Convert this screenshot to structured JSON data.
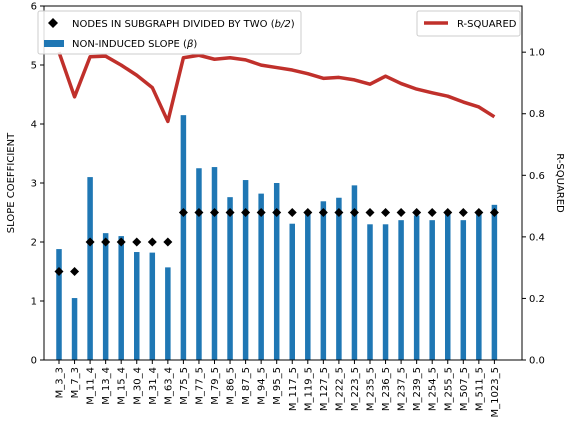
{
  "chart_data": {
    "type": "bar",
    "categories": [
      "M_3_3",
      "M_7_3",
      "M_11_4",
      "M_13_4",
      "M_15_4",
      "M_30_4",
      "M_31_4",
      "M_63_4",
      "M_75_5",
      "M_77_5",
      "M_79_5",
      "M_86_5",
      "M_87_5",
      "M_94_5",
      "M_95_5",
      "M_117_5",
      "M_119_5",
      "M_127_5",
      "M_222_5",
      "M_223_5",
      "M_235_5",
      "M_236_5",
      "M_237_5",
      "M_239_5",
      "M_254_5",
      "M_255_5",
      "M_507_5",
      "M_511_5",
      "M_1023_5"
    ],
    "ylabel_left": "SLOPE COEFFICIENT",
    "ylabel_right": "R-SQUARED",
    "ylim_left": [
      0,
      6
    ],
    "ylim_right": [
      0,
      1.15
    ],
    "yticks_left": [
      "0",
      "1",
      "2",
      "3",
      "4",
      "5",
      "6"
    ],
    "yticks_right": [
      "0.0",
      "0.2",
      "0.4",
      "0.6",
      "0.8",
      "1.0"
    ],
    "grid": false,
    "legend_left_placement": "top-left",
    "legend_right_placement": "top-right",
    "series": [
      {
        "name": "NON-INDUCED SLOPE (β)",
        "kind": "bar",
        "axis": "left",
        "color": "#1f77b4",
        "values": [
          1.88,
          1.05,
          3.1,
          2.15,
          2.1,
          1.83,
          1.82,
          1.57,
          4.15,
          3.25,
          3.27,
          2.76,
          3.05,
          2.82,
          3.0,
          2.31,
          2.47,
          2.69,
          2.75,
          2.96,
          2.3,
          2.3,
          2.37,
          2.45,
          2.37,
          2.48,
          2.37,
          2.47,
          2.63
        ]
      },
      {
        "name": "NODES IN SUBGRAPH DIVIDED BY TWO (b/2)",
        "kind": "marker",
        "axis": "left",
        "color": "#000000",
        "values": [
          1.5,
          1.5,
          2.0,
          2.0,
          2.0,
          2.0,
          2.0,
          2.0,
          2.5,
          2.5,
          2.5,
          2.5,
          2.5,
          2.5,
          2.5,
          2.5,
          2.5,
          2.5,
          2.5,
          2.5,
          2.5,
          2.5,
          2.5,
          2.5,
          2.5,
          2.5,
          2.5,
          2.5,
          2.5
        ]
      },
      {
        "name": "R-SQUARED",
        "kind": "line",
        "axis": "right",
        "color": "#c0302b",
        "values": [
          1.0,
          0.855,
          0.985,
          0.987,
          0.958,
          0.925,
          0.885,
          0.775,
          0.982,
          0.99,
          0.977,
          0.982,
          0.975,
          0.958,
          0.95,
          0.942,
          0.93,
          0.915,
          0.918,
          0.91,
          0.896,
          0.922,
          0.898,
          0.88,
          0.868,
          0.857,
          0.838,
          0.822,
          0.79
        ]
      }
    ]
  },
  "legend_left": {
    "marker_label_main": "NODES IN SUBGRAPH DIVIDED BY TWO (",
    "marker_label_math": "b/2",
    "marker_label_end": ")",
    "bar_label_main": "NON-INDUCED SLOPE (",
    "bar_label_math": "β",
    "bar_label_end": ")"
  },
  "legend_right": {
    "line_label": "R-SQUARED"
  }
}
